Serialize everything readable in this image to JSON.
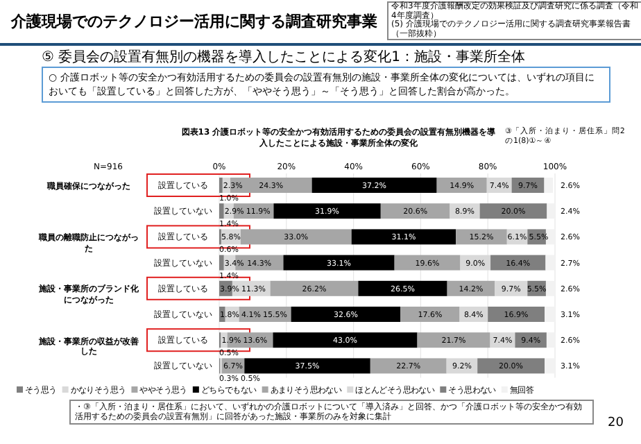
{
  "chart_data": {
    "type": "bar",
    "orientation": "horizontal",
    "stacked": true,
    "title": "介護現場でのテクノロジー活用に関する調査研究事業",
    "subtitle": "⑤ 委員会の設置有無別の機器を導入したことによる変化1：施設・事業所全体",
    "annotations": [
      "令和3年度介護報酬改定の効果検証及び調査研究に係る調査（令和4年度調査）",
      "(5) 介護現場でのテクノロジー活用に関する調査研究事業報告書（一部抜粋）",
      "○ 介護ロボット等の安全かつ有効活用するための委員会の設置有無別の施設・事業所全体の変化については、いずれの項目においても「設置している」と回答した方が、「ややそう思う」～「そう思う」と回答した割合が高かった。",
      "図表13 介護ロボット等の安全かつ有効活用するための委員会の設置有無別機器を導入したことによる施設・事業所全体の変化",
      "③「入所・泊まり・居住系」問2の1(8)①～④",
      "N=916",
      "職員確保につながった",
      "職員の離職防止につながった",
      "施設・事業所のブランド化につながった",
      "施設・事業所の収益が改善した",
      "・③「入所・泊まり・居住系」において、いずれかの介護ロボットについて「導入済み」と回答、かつ「介護ロボット等の安全かつ有効活用するための委員会の設置有無別」に回答があった施設・事業所のみを対象に集計",
      "20"
    ],
    "categories": [
      "設置している",
      "設置していない",
      "設置している",
      "設置していない",
      "設置している",
      "設置していない",
      "設置している",
      "設置していない"
    ],
    "series": [
      {
        "name": "そう思う",
        "color": "#7f7f7f",
        "values": [
          1.0,
          1.4,
          0.6,
          1.4,
          3.9,
          1.8,
          0.5,
          0.3
        ],
        "value_labels": [
          "1.0%",
          "1.4%",
          "0.6%",
          "1.4%",
          "3.9%",
          "1.8%",
          "0.5%",
          "0.3%"
        ]
      },
      {
        "name": "かなりそう思う",
        "color": "#d9d9d9",
        "values": [
          2.3,
          2.9,
          5.8,
          3.4,
          11.3,
          4.1,
          1.9,
          0.5
        ],
        "value_labels": [
          "2.3%",
          "2.9%",
          "5.8%",
          "3.4%",
          "11.3%",
          "4.1%",
          "1.9%",
          "0.5%"
        ]
      },
      {
        "name": "ややそう思う",
        "color": "#a6a6a6",
        "values": [
          24.3,
          11.9,
          33.0,
          14.3,
          26.2,
          15.5,
          13.6,
          6.7
        ],
        "value_labels": [
          "24.3%",
          "11.9%",
          "33.0%",
          "14.3%",
          "26.2%",
          "15.5%",
          "13.6%",
          "6.7%"
        ]
      },
      {
        "name": "どちらでもない",
        "color": "#000000",
        "values": [
          37.2,
          31.9,
          31.1,
          33.1,
          26.5,
          32.6,
          43.0,
          37.5
        ],
        "value_labels": [
          "37.2%",
          "31.9%",
          "31.1%",
          "33.1%",
          "26.5%",
          "32.6%",
          "43.0%",
          "37.5%"
        ]
      },
      {
        "name": "あまりそう思わない",
        "color": "#a6a6a6",
        "values": [
          14.9,
          20.6,
          15.2,
          19.6,
          14.2,
          17.6,
          21.7,
          22.7
        ],
        "value_labels": [
          "14.9%",
          "20.6%",
          "15.2%",
          "19.6%",
          "14.2%",
          "17.6%",
          "21.7%",
          "22.7%"
        ]
      },
      {
        "name": "ほとんどそう思わない",
        "color": "#d9d9d9",
        "values": [
          7.4,
          8.9,
          6.1,
          9.0,
          9.7,
          8.4,
          7.4,
          9.2
        ],
        "value_labels": [
          "7.4%",
          "8.9%",
          "6.1%",
          "9.0%",
          "9.7%",
          "8.4%",
          "7.4%",
          "9.2%"
        ]
      },
      {
        "name": "そう思わない",
        "color": "#7f7f7f",
        "values": [
          9.7,
          20.0,
          5.5,
          16.4,
          5.5,
          16.9,
          9.4,
          20.0
        ],
        "value_labels": [
          "9.7%",
          "20.0%",
          "5.5%",
          "16.4%",
          "5.5%",
          "16.9%",
          "9.4%",
          "20.0%"
        ]
      },
      {
        "name": "無回答",
        "color": "#f2f2f2",
        "values": [
          2.6,
          2.4,
          2.6,
          2.7,
          2.6,
          3.1,
          2.6,
          3.1
        ],
        "value_labels": [
          "2.6%",
          "2.4%",
          "2.6%",
          "2.7%",
          "2.6%",
          "3.1%",
          "2.6%",
          "3.1%"
        ]
      }
    ],
    "xlim": [
      0,
      100
    ],
    "xticks": [
      {
        "value": 0,
        "label": "0%"
      },
      {
        "value": 20,
        "label": "20%"
      },
      {
        "value": 40,
        "label": "40%"
      },
      {
        "value": 60,
        "label": "60%"
      },
      {
        "value": 80,
        "label": "80%"
      },
      {
        "value": 100,
        "label": "100%"
      }
    ],
    "grid": "x",
    "legend": "bottom"
  }
}
